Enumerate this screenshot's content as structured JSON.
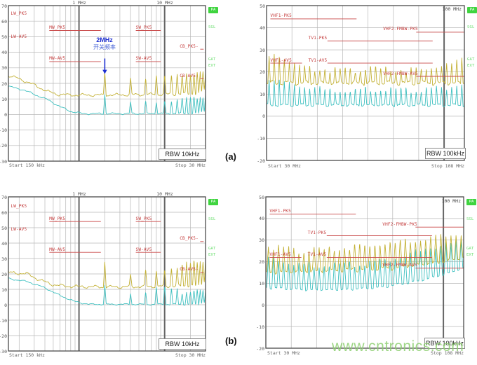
{
  "watermark": "www.cntronics.com",
  "captions": {
    "a": "(a)",
    "b": "(b)"
  },
  "chart_data": [
    {
      "id": "conducted-emissions-before",
      "type": "line",
      "rbw": "RBW 10kHz",
      "start": "Start 150 kHz",
      "stop": "Stop 30 MHz",
      "x_axis": {
        "scale": "log",
        "min_mhz": 0.15,
        "max_mhz": 30,
        "major_f": [
          1,
          10
        ],
        "top_labels": [
          {
            "text": "1 MHz",
            "f": 1
          },
          {
            "text": "10 MHz",
            "f": 10
          }
        ]
      },
      "y_axis": {
        "min": -30,
        "max": 70,
        "ticks": [
          70,
          60,
          50,
          40,
          30,
          20,
          10,
          0,
          -10,
          -20,
          -30
        ]
      },
      "annotation": {
        "line1": "2MHz",
        "line2": "开关频率",
        "f": 2,
        "arrow_top_db": 36,
        "arrow_bot_db": 26
      },
      "limits": [
        {
          "label": "LW_PK5",
          "f": 0.16,
          "level": 63,
          "line": null
        },
        {
          "label": "MW_PK5",
          "f": 0.45,
          "level": 54,
          "line": [
            0.45,
            1.8
          ]
        },
        {
          "label": "SW_PK5",
          "f": 4.6,
          "level": 54,
          "line": [
            4.6,
            9.0
          ]
        },
        {
          "label": "LW-AV5",
          "f": 0.16,
          "level": 48,
          "line": null
        },
        {
          "label": "CB_PK5-",
          "f": 15.0,
          "level": 42,
          "line": [
            26,
            28.5
          ]
        },
        {
          "label": "MW-AV5",
          "f": 0.45,
          "level": 34,
          "line": [
            0.45,
            1.8
          ]
        },
        {
          "label": "SW-AV5",
          "f": 4.6,
          "level": 34,
          "line": [
            4.6,
            9.0
          ]
        },
        {
          "label": "CB-AV5-",
          "f": 15.0,
          "level": 23,
          "line": [
            26,
            28.5
          ]
        }
      ],
      "series": [
        {
          "name": "average-trace",
          "color": "#3fc0c0",
          "noise": 0.7,
          "baseline": [
            [
              0.15,
              18
            ],
            [
              0.22,
              16
            ],
            [
              0.3,
              13
            ],
            [
              0.45,
              9
            ],
            [
              0.6,
              5
            ],
            [
              0.8,
              2
            ],
            [
              1.1,
              0.5
            ],
            [
              30,
              0.6
            ]
          ],
          "spikes": {
            "from": 2,
            "to": 30,
            "step": 2,
            "jitter": 1.0,
            "env": [
              [
                2,
                13
              ],
              [
                4,
                8
              ],
              [
                10,
                9
              ],
              [
                20,
                11
              ],
              [
                30,
                12
              ]
            ]
          }
        },
        {
          "name": "peak-trace",
          "color": "#c3b135",
          "noise": 1.1,
          "baseline": [
            [
              0.15,
              25
            ],
            [
              0.2,
              23
            ],
            [
              0.3,
              19
            ],
            [
              0.42,
              15
            ],
            [
              0.55,
              13
            ],
            [
              0.8,
              12.5
            ],
            [
              2,
              12.5
            ],
            [
              10,
              13
            ],
            [
              30,
              13.5
            ]
          ],
          "spikes": {
            "from": 2,
            "to": 30,
            "step": 2,
            "jitter": 1.2,
            "env": [
              [
                2,
                28
              ],
              [
                4,
                24
              ],
              [
                10,
                25
              ],
              [
                20,
                27
              ],
              [
                30,
                28
              ]
            ]
          }
        }
      ],
      "side_labels": [
        {
          "text": "PA"
        },
        {
          "text": "SGL"
        },
        {
          "text": "GAT"
        },
        {
          "text": "EXT"
        }
      ]
    },
    {
      "id": "radiated-fm-band-before",
      "type": "line",
      "rbw": "RBW 100kHz",
      "start": "Start 30 MHz",
      "stop": "Stop 108 MHz",
      "x_axis": {
        "scale": "linear",
        "min_mhz": 30,
        "max_mhz": 108,
        "major_f": [
          100
        ],
        "top_labels": [
          {
            "text": "100 MHz",
            "f": 100
          }
        ]
      },
      "y_axis": {
        "min": -20,
        "max": 50,
        "ticks": [
          50,
          40,
          30,
          20,
          10,
          0,
          -10,
          -20
        ]
      },
      "annotation": null,
      "limits": [
        {
          "label": "VHF1-PK5",
          "f": 31.5,
          "level": 44,
          "line": [
            31.5,
            65.5
          ]
        },
        {
          "label": "VHF2-FMBW-PK5",
          "f": 76,
          "level": 38,
          "line": [
            89,
            108
          ]
        },
        {
          "label": "TV1-PK5",
          "f": 46.5,
          "level": 34,
          "line": [
            54,
            95.5
          ]
        },
        {
          "label": "VHF1-AV5",
          "f": 31.5,
          "level": 24,
          "line": [
            31.5,
            44
          ]
        },
        {
          "label": "TV1-AV5",
          "f": 46.5,
          "level": 24,
          "line": [
            54,
            95.5
          ]
        },
        {
          "label": "VHF2-FMBW-AV5",
          "f": 76,
          "level": 18,
          "line": [
            89,
            108
          ]
        }
      ],
      "series": [
        {
          "name": "average-trace",
          "color": "#3fc0c0",
          "noise": 0.8,
          "baseline": [
            [
              30,
              5
            ],
            [
              108,
              5
            ]
          ],
          "spikes": {
            "from": 31,
            "to": 107,
            "step": 2,
            "jitter": 1.4,
            "env": [
              [
                31,
                17
              ],
              [
                40,
                15
              ],
              [
                55,
                12
              ],
              [
                70,
                13
              ],
              [
                85,
                12
              ],
              [
                100,
                13
              ],
              [
                107,
                15
              ]
            ]
          }
        },
        {
          "name": "peak-trace",
          "color": "#c3b135",
          "noise": 1.2,
          "baseline": [
            [
              30,
              15
            ],
            [
              108,
              15
            ]
          ],
          "spikes": {
            "from": 31,
            "to": 107,
            "step": 2,
            "jitter": 1.5,
            "env": [
              [
                31,
                27
              ],
              [
                35,
                28
              ],
              [
                45,
                22
              ],
              [
                60,
                21
              ],
              [
                75,
                22
              ],
              [
                90,
                21
              ],
              [
                100,
                23
              ],
              [
                107,
                25
              ]
            ]
          }
        }
      ],
      "side_labels": [
        {
          "text": "PA"
        },
        {
          "text": "SGL"
        },
        {
          "text": "GAT"
        },
        {
          "text": "EXT"
        }
      ]
    },
    {
      "id": "conducted-emissions-after",
      "type": "line",
      "rbw": "RBW 10kHz",
      "start": "Start 150 kHz",
      "stop": "Stop 30 MHz",
      "x_axis": {
        "scale": "log",
        "min_mhz": 0.15,
        "max_mhz": 30,
        "major_f": [
          1,
          10
        ],
        "top_labels": [
          {
            "text": "1 MHz",
            "f": 1
          },
          {
            "text": "10 MHz",
            "f": 10
          }
        ]
      },
      "y_axis": {
        "min": -30,
        "max": 70,
        "ticks": [
          70,
          60,
          50,
          40,
          30,
          20,
          10,
          0,
          -10,
          -20,
          -30
        ]
      },
      "annotation": null,
      "limits": [
        {
          "label": "LW_PK5",
          "f": 0.16,
          "level": 62,
          "line": null
        },
        {
          "label": "MW_PK5",
          "f": 0.45,
          "level": 54,
          "line": [
            0.45,
            1.8
          ]
        },
        {
          "label": "SW_PK5",
          "f": 4.6,
          "level": 54,
          "line": [
            4.6,
            9.0
          ]
        },
        {
          "label": "LW-AV5",
          "f": 0.16,
          "level": 47,
          "line": null
        },
        {
          "label": "CB_PK5-",
          "f": 15.0,
          "level": 41,
          "line": [
            26,
            28.5
          ]
        },
        {
          "label": "MW-AV5",
          "f": 0.45,
          "level": 34,
          "line": [
            0.45,
            1.8
          ]
        },
        {
          "label": "SW-AV5",
          "f": 4.6,
          "level": 34,
          "line": [
            4.6,
            9.0
          ]
        },
        {
          "label": "CB-AV5-",
          "f": 15.0,
          "level": 21,
          "line": [
            26,
            28.5
          ]
        }
      ],
      "series": [
        {
          "name": "average-trace",
          "color": "#3fc0c0",
          "noise": 0.6,
          "baseline": [
            [
              0.15,
              17
            ],
            [
              0.25,
              15
            ],
            [
              0.4,
              11
            ],
            [
              0.6,
              6
            ],
            [
              0.9,
              2
            ],
            [
              1.3,
              0.3
            ],
            [
              30,
              0.2
            ]
          ],
          "spikes": {
            "from": 2,
            "to": 30,
            "step": 2,
            "jitter": 1.2,
            "env": [
              [
                2,
                14
              ],
              [
                4,
                8
              ],
              [
                10,
                12
              ],
              [
                16,
                8
              ],
              [
                22,
                10
              ],
              [
                30,
                9
              ]
            ]
          }
        },
        {
          "name": "peak-trace",
          "color": "#c3b135",
          "noise": 1.2,
          "baseline": [
            [
              0.15,
              21
            ],
            [
              0.25,
              20
            ],
            [
              0.35,
              16
            ],
            [
              0.5,
              13
            ],
            [
              0.7,
              12
            ],
            [
              2,
              11.5
            ],
            [
              10,
              12
            ],
            [
              30,
              12.5
            ]
          ],
          "spikes": {
            "from": 2,
            "to": 30,
            "step": 2,
            "jitter": 1.5,
            "env": [
              [
                2,
                28
              ],
              [
                4,
                20
              ],
              [
                6,
                23
              ],
              [
                10,
                24
              ],
              [
                16,
                26
              ],
              [
                22,
                29
              ],
              [
                30,
                29
              ]
            ]
          }
        }
      ],
      "side_labels": [
        {
          "text": "PA"
        },
        {
          "text": "SGL"
        },
        {
          "text": "GAT"
        },
        {
          "text": "EXT"
        }
      ]
    },
    {
      "id": "radiated-fm-band-after",
      "type": "line",
      "rbw": "RBW 100kHz",
      "start": "Start 30 MHz",
      "stop": "Stop 108 MHz",
      "x_axis": {
        "scale": "linear",
        "min_mhz": 30,
        "max_mhz": 108,
        "major_f": [
          100
        ],
        "top_labels": [
          {
            "text": "100 MHz",
            "f": 100
          }
        ]
      },
      "y_axis": {
        "min": -20,
        "max": 50,
        "ticks": [
          50,
          40,
          30,
          20,
          10,
          0,
          -10,
          -20
        ]
      },
      "annotation": null,
      "limits": [
        {
          "label": "VHF1-PK5",
          "f": 31.5,
          "level": 42,
          "line": [
            31.5,
            65.5
          ]
        },
        {
          "label": "VHF2-FMBW-PK5",
          "f": 76,
          "level": 36,
          "line": [
            89,
            108
          ]
        },
        {
          "label": "TV1-PK5",
          "f": 46.5,
          "level": 32,
          "line": [
            54,
            95.5
          ]
        },
        {
          "label": "VHF1-AV5",
          "f": 31.5,
          "level": 22,
          "line": [
            31.5,
            44
          ]
        },
        {
          "label": "TV1-AV5",
          "f": 46.5,
          "level": 22,
          "line": [
            54,
            95.5
          ]
        },
        {
          "label": "VHF2-FMBW-AV5",
          "f": 76,
          "level": 17,
          "line": [
            89,
            108
          ]
        }
      ],
      "series": [
        {
          "name": "average-trace",
          "color": "#3fc0c0",
          "noise": 0.6,
          "baseline": [
            [
              30,
              8
            ],
            [
              45,
              7
            ],
            [
              60,
              7
            ],
            [
              75,
              8
            ],
            [
              90,
              11
            ],
            [
              100,
              14
            ],
            [
              108,
              17
            ]
          ],
          "spikes": {
            "from": 31,
            "to": 107,
            "step": 2,
            "jitter": 1.5,
            "env": [
              [
                31,
                22
              ],
              [
                45,
                19
              ],
              [
                60,
                19
              ],
              [
                75,
                21
              ],
              [
                90,
                25
              ],
              [
                100,
                28
              ],
              [
                107,
                29
              ]
            ]
          }
        },
        {
          "name": "peak-trace",
          "color": "#c3b135",
          "noise": 1.1,
          "baseline": [
            [
              30,
              15
            ],
            [
              60,
              16
            ],
            [
              80,
              17
            ],
            [
              100,
              20
            ],
            [
              108,
              22
            ]
          ],
          "spikes": {
            "from": 31,
            "to": 107,
            "step": 2,
            "jitter": 1.5,
            "env": [
              [
                31,
                27
              ],
              [
                45,
                25
              ],
              [
                60,
                27
              ],
              [
                80,
                29
              ],
              [
                100,
                32
              ],
              [
                107,
                33
              ]
            ]
          }
        }
      ],
      "side_labels": [
        {
          "text": "PA"
        },
        {
          "text": "SGL"
        },
        {
          "text": "GAT"
        },
        {
          "text": "EXT"
        }
      ]
    }
  ]
}
